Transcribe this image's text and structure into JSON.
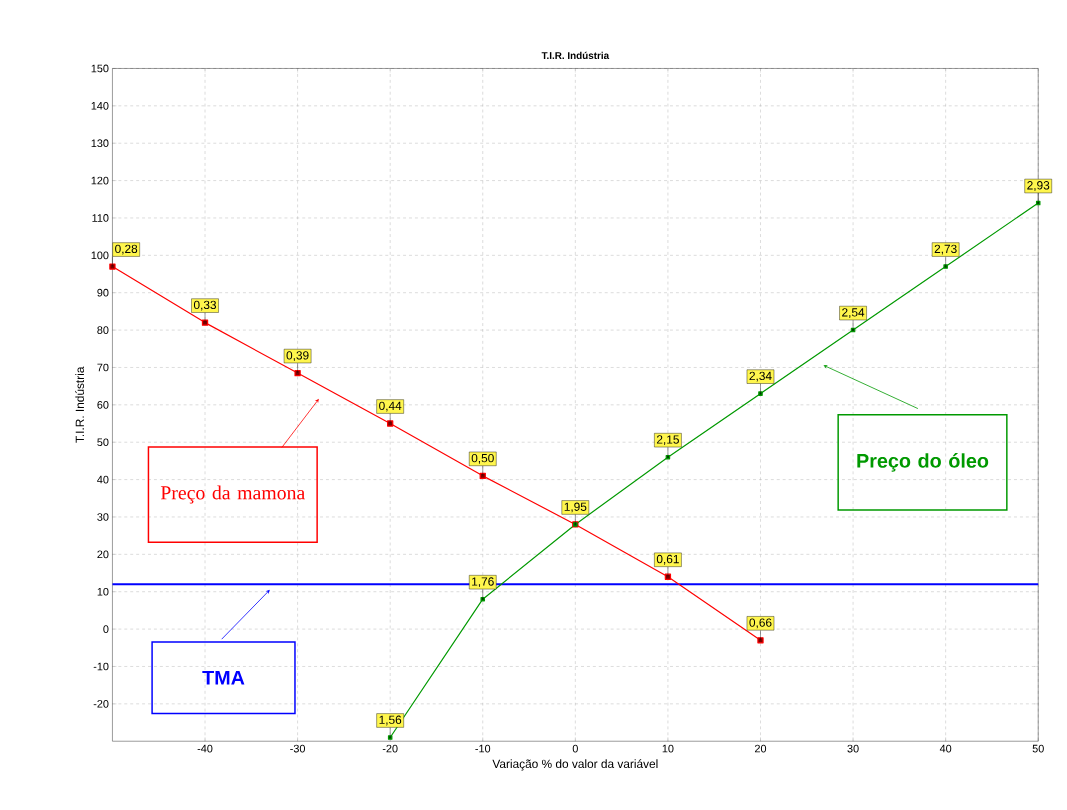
{
  "chart_data": {
    "type": "line",
    "title": "T.I.R. Indústria",
    "xlabel": "Variação % do valor da variável",
    "ylabel": "T.I.R. Indústria",
    "xlim": [
      -50,
      50
    ],
    "xticks": [
      -40,
      -30,
      -20,
      -10,
      0,
      10,
      20,
      30,
      40,
      50
    ],
    "ylim": [
      -30,
      150
    ],
    "yticks": [
      -20,
      -10,
      0,
      10,
      20,
      30,
      40,
      50,
      60,
      70,
      80,
      90,
      100,
      110,
      120,
      130,
      140,
      150
    ],
    "grid": true,
    "marker": "square",
    "line_style": "solid",
    "series": [
      {
        "name": "Preço da mamona",
        "color": "#ff0000",
        "x": [
          -50,
          -40,
          -30,
          -20,
          -10,
          0,
          10,
          20
        ],
        "values": [
          97,
          82,
          68.5,
          55,
          41,
          28,
          14,
          -3
        ]
      },
      {
        "name": "Preço do óleo",
        "color": "#009900",
        "x": [
          -20,
          -10,
          0,
          10,
          20,
          30,
          40,
          50
        ],
        "values": [
          -29,
          8,
          28,
          46,
          63,
          80,
          97,
          114
        ]
      }
    ],
    "annotations": [
      {
        "text": "0,28",
        "x": -50,
        "y": 97
      },
      {
        "text": "0,33",
        "x": -40,
        "y": 82
      },
      {
        "text": "0,39",
        "x": -30,
        "y": 68.5
      },
      {
        "text": "0,44",
        "x": -20,
        "y": 55
      },
      {
        "text": "0,50",
        "x": -10,
        "y": 41
      },
      {
        "text": "1,95",
        "x": 0,
        "y": 28
      },
      {
        "text": "0,61",
        "x": 10,
        "y": 14
      },
      {
        "text": "0,66",
        "x": 20,
        "y": -3
      },
      {
        "text": "1,56",
        "x": -20,
        "y": -29
      },
      {
        "text": "1,76",
        "x": -10,
        "y": 8
      },
      {
        "text": "2,15",
        "x": 10,
        "y": 46
      },
      {
        "text": "2,34",
        "x": 20,
        "y": 63
      },
      {
        "text": "2,54",
        "x": 30,
        "y": 80
      },
      {
        "text": "2,73",
        "x": 40,
        "y": 97
      },
      {
        "text": "2,93",
        "x": 50,
        "y": 114
      }
    ],
    "ref_lines": [
      {
        "axis": "y",
        "value": 12,
        "label": "TMA",
        "color": "#0000ff"
      }
    ]
  }
}
